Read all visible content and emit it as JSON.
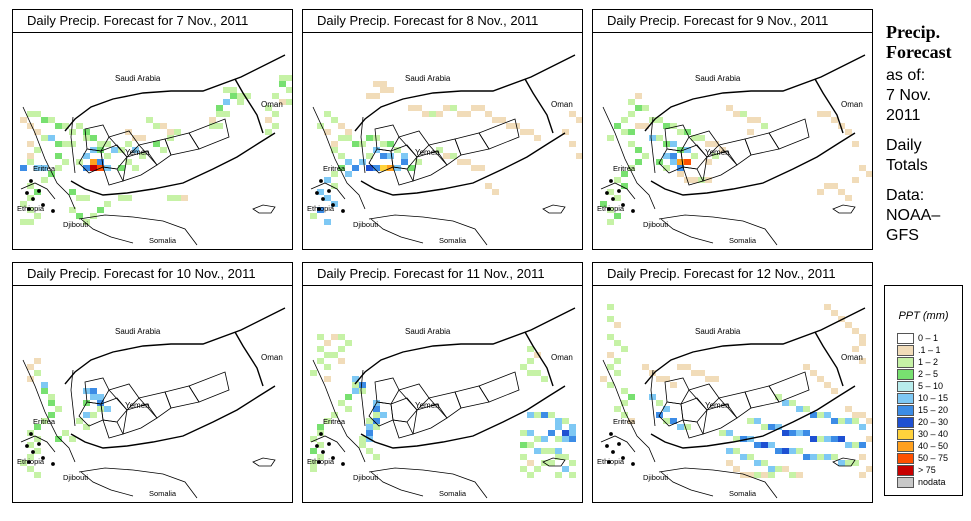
{
  "panels": [
    {
      "title": "Daily Precip. Forecast for  7 Nov., 2011"
    },
    {
      "title": "Daily Precip. Forecast for  8 Nov., 2011"
    },
    {
      "title": "Daily Precip. Forecast for  9 Nov., 2011"
    },
    {
      "title": "Daily Precip. Forecast for  10 Nov., 2011"
    },
    {
      "title": "Daily Precip. Forecast for  11 Nov., 2011"
    },
    {
      "title": "Daily Precip. Forecast for  12 Nov., 2011"
    }
  ],
  "map_labels": {
    "saudi_arabia": "Saudi Arabia",
    "oman": "Oman",
    "yemen": "Yemen",
    "eritrea": "Eritrea",
    "ethiopia": "Ethiopia",
    "djibouti": "Djibouti",
    "somalia": "Somalia"
  },
  "side": {
    "heading_line1": "Precip.",
    "heading_line2": "Forecast",
    "asof": "as of:",
    "date_line1": "7 Nov.",
    "date_line2": "2011",
    "daily_line1": "Daily",
    "daily_line2": "Totals",
    "data_line1": "Data:",
    "data_line2": "NOAA–",
    "data_line3": "GFS"
  },
  "legend": {
    "title": "PPT (mm)",
    "classes": [
      {
        "label": "0 – 1",
        "color": "#ffffff"
      },
      {
        "label": ".1 – 1",
        "color": "#f1dcb9"
      },
      {
        "label": "1 – 2",
        "color": "#c6f2a6"
      },
      {
        "label": "2 – 5",
        "color": "#78e070"
      },
      {
        "label": "5 – 10",
        "color": "#b8ecec"
      },
      {
        "label": "10 – 15",
        "color": "#7ec8f4"
      },
      {
        "label": "15 – 20",
        "color": "#3c8ce6"
      },
      {
        "label": "20 – 30",
        "color": "#1e50d2"
      },
      {
        "label": "30 – 40",
        "color": "#ffd23c"
      },
      {
        "label": "40 – 50",
        "color": "#ffa01e"
      },
      {
        "label": "50 – 75",
        "color": "#ff5000"
      },
      {
        "label": "> 75",
        "color": "#c80000"
      },
      {
        "label": "nodata",
        "color": "#c8c8c8"
      }
    ]
  }
}
